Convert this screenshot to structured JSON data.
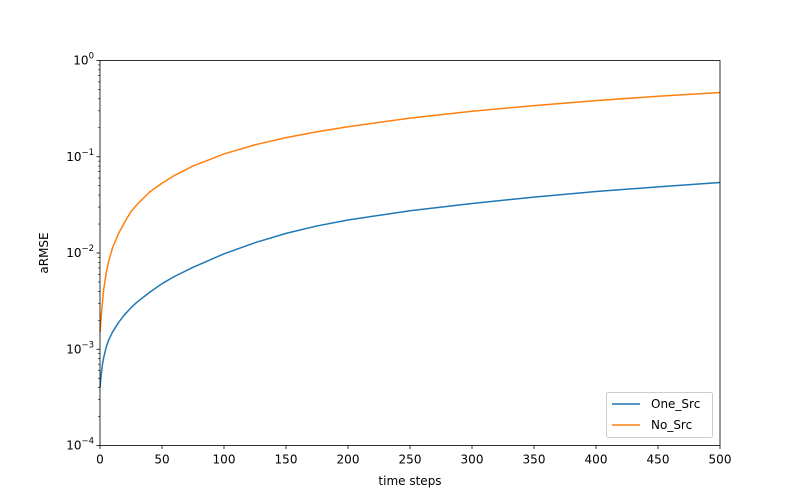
{
  "chart_data": {
    "type": "line",
    "title": "",
    "xlabel": "time steps",
    "ylabel": "aRMSE",
    "xlim": [
      0,
      500
    ],
    "ylim": [
      0.0001,
      1
    ],
    "yscale": "log",
    "grid": false,
    "legend_position": "lower-right",
    "x_ticks": [
      "0",
      "50",
      "100",
      "150",
      "200",
      "250",
      "300",
      "350",
      "400",
      "450",
      "500"
    ],
    "y_tick_bases": [
      "10",
      "10",
      "10",
      "10",
      "10"
    ],
    "y_tick_exponents": [
      "−4",
      "−3",
      "−2",
      "−1",
      "0"
    ],
    "series": [
      {
        "name": "One_Src",
        "color": "#1f77b4",
        "x": [
          0,
          1,
          2,
          3,
          5,
          7,
          10,
          15,
          20,
          25,
          30,
          40,
          50,
          60,
          75,
          100,
          125,
          150,
          175,
          200,
          250,
          300,
          350,
          400,
          450,
          500
        ],
        "y": [
          0.0004,
          0.00055,
          0.0007,
          0.00082,
          0.00105,
          0.00125,
          0.0015,
          0.0019,
          0.0023,
          0.0027,
          0.0031,
          0.0039,
          0.0048,
          0.0057,
          0.0071,
          0.0098,
          0.0128,
          0.016,
          0.0191,
          0.022,
          0.0275,
          0.0327,
          0.0381,
          0.0435,
          0.0487,
          0.054
        ]
      },
      {
        "name": "No_Src",
        "color": "#ff7f0e",
        "x": [
          0,
          1,
          2,
          3,
          5,
          7,
          10,
          15,
          20,
          25,
          30,
          40,
          50,
          60,
          75,
          100,
          125,
          150,
          175,
          200,
          250,
          300,
          350,
          400,
          450,
          500
        ],
        "y": [
          0.0015,
          0.0022,
          0.0031,
          0.0042,
          0.0062,
          0.0082,
          0.0112,
          0.016,
          0.021,
          0.027,
          0.032,
          0.043,
          0.053,
          0.064,
          0.08,
          0.107,
          0.133,
          0.158,
          0.182,
          0.205,
          0.252,
          0.297,
          0.34,
          0.383,
          0.425,
          0.465
        ]
      }
    ]
  }
}
